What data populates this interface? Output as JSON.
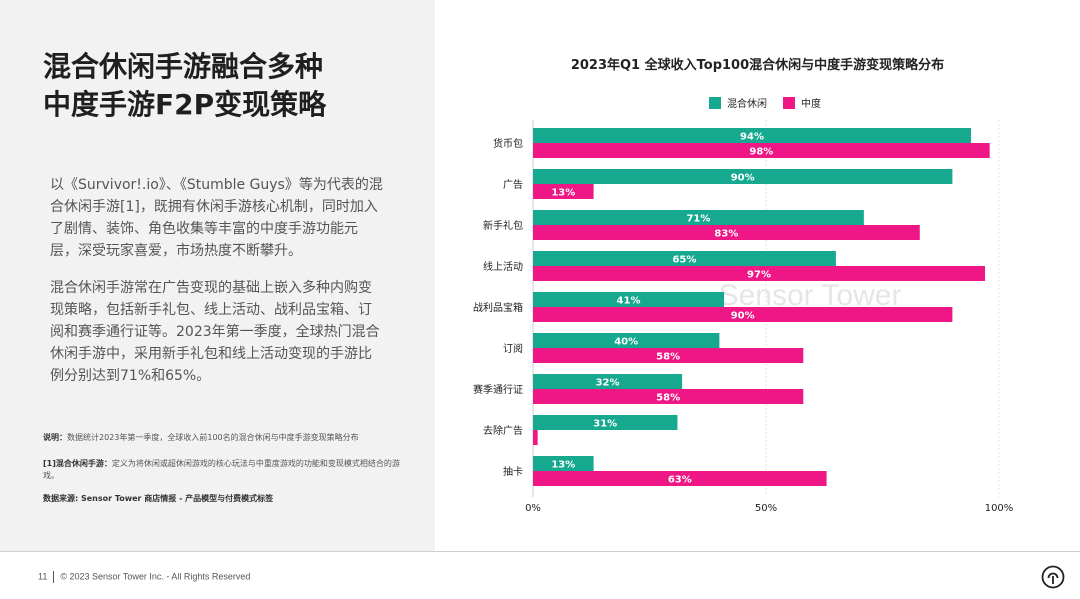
{
  "page": {
    "title_line1": "混合休闲手游融合多种",
    "title_line2": "中度手游F2P变现策略",
    "paragraph1": "以《Survivor!.io》、《Stumble Guys》等为代表的混合休闲手游[1]，既拥有休闲手游核心机制，同时加入了剧情、装饰、角色收集等丰富的中度手游功能元层，深受玩家喜爱，市场热度不断攀升。",
    "paragraph2": "混合休闲手游常在广告变现的基础上嵌入多种内购变现策略，包括新手礼包、线上活动、战利品宝箱、订阅和赛季通行证等。2023年第一季度，全球热门混合休闲手游中，采用新手礼包和线上活动变现的手游比例分别达到71%和65%。",
    "note_label": "说明：",
    "note_text": "数据统计2023年第一季度，全球收入前100名的混合休闲与中度手游变现策略分布",
    "footnote_label": "[1]混合休闲手游：",
    "footnote_text": "定义为将休闲或超休闲游戏的核心玩法与中重度游戏的功能和变现模式相结合的游戏。",
    "source": "数据来源: Sensor Tower 商店情报 - 产品模型与付费模式标签",
    "page_number": "11",
    "copyright": "© 2023 Sensor Tower Inc. - All Rights Reserved"
  },
  "chart_data": {
    "type": "bar",
    "orientation": "horizontal",
    "title": "2023年Q1 全球收入Top100混合休闲与中度手游变现策略分布",
    "categories": [
      "货币包",
      "广告",
      "新手礼包",
      "线上活动",
      "战利品宝箱",
      "订阅",
      "赛季通行证",
      "去除广告",
      "抽卡"
    ],
    "series": [
      {
        "name": "混合休闲",
        "color": "#17a98f",
        "values": [
          94,
          90,
          71,
          65,
          41,
          40,
          32,
          31,
          13
        ]
      },
      {
        "name": "中度",
        "color": "#ee1785",
        "values": [
          98,
          13,
          83,
          97,
          90,
          58,
          58,
          1,
          63
        ]
      }
    ],
    "value_labels": [
      [
        "94%",
        "90%",
        "71%",
        "65%",
        "41%",
        "40%",
        "32%",
        "31%",
        "13%"
      ],
      [
        "98%",
        "13%",
        "83%",
        "97%",
        "90%",
        "58%",
        "58%",
        "",
        "63%"
      ]
    ],
    "xlim": [
      0,
      100
    ],
    "xticks": [
      "0%",
      "50%",
      "100%"
    ],
    "grid": true,
    "legend_position": "top",
    "watermark": "Sensor Tower"
  }
}
